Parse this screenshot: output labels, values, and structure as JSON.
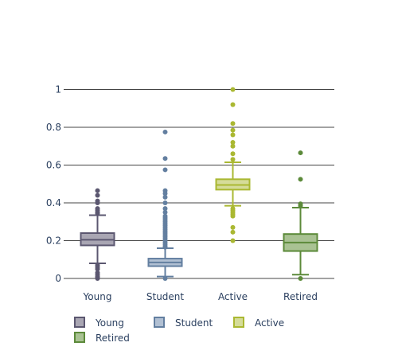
{
  "chart_data": {
    "type": "box",
    "title": "",
    "xlabel": "",
    "ylabel": "",
    "categories": [
      "Young",
      "Student",
      "Active",
      "Retired"
    ],
    "ylim": [
      0,
      1.05
    ],
    "yticks": [
      0,
      0.2,
      0.4,
      0.6,
      0.8,
      1
    ],
    "ytick_labels": [
      "0",
      "0.2",
      "0.4",
      "0.6",
      "0.8",
      "1"
    ],
    "grid": "horizontal",
    "legend": "bottom-left",
    "series": [
      {
        "name": "Young",
        "color": "#5b5770",
        "fill": "#a9a6b3",
        "stats": {
          "lower_fence": 0.08,
          "q1": 0.175,
          "median": 0.205,
          "q3": 0.24,
          "upper_fence": 0.335
        },
        "outliers": [
          0.0,
          0.005,
          0.01,
          0.02,
          0.03,
          0.05,
          0.06,
          0.07,
          0.345,
          0.35,
          0.36,
          0.37,
          0.4,
          0.41,
          0.44,
          0.465
        ]
      },
      {
        "name": "Student",
        "color": "#637fa0",
        "fill": "#b1c0d3",
        "stats": {
          "lower_fence": 0.01,
          "q1": 0.065,
          "median": 0.085,
          "q3": 0.105,
          "upper_fence": 0.16
        },
        "outliers": [
          0.0,
          0.165,
          0.17,
          0.18,
          0.19,
          0.2,
          0.21,
          0.22,
          0.23,
          0.24,
          0.25,
          0.26,
          0.27,
          0.28,
          0.29,
          0.3,
          0.31,
          0.32,
          0.33,
          0.35,
          0.37,
          0.4,
          0.43,
          0.45,
          0.465,
          0.575,
          0.635,
          0.775
        ]
      },
      {
        "name": "Active",
        "color": "#aab832",
        "fill": "#d5dc99",
        "stats": {
          "lower_fence": 0.385,
          "q1": 0.47,
          "median": 0.495,
          "q3": 0.525,
          "upper_fence": 0.615
        },
        "outliers": [
          0.2,
          0.245,
          0.27,
          0.33,
          0.34,
          0.35,
          0.36,
          0.37,
          0.63,
          0.66,
          0.7,
          0.72,
          0.76,
          0.785,
          0.82,
          0.92,
          1.0
        ]
      },
      {
        "name": "Retired",
        "color": "#5c8a3a",
        "fill": "#a9c293",
        "stats": {
          "lower_fence": 0.02,
          "q1": 0.145,
          "median": 0.19,
          "q3": 0.235,
          "upper_fence": 0.375
        },
        "outliers": [
          0.0,
          0.385,
          0.395,
          0.525,
          0.665
        ]
      }
    ]
  }
}
